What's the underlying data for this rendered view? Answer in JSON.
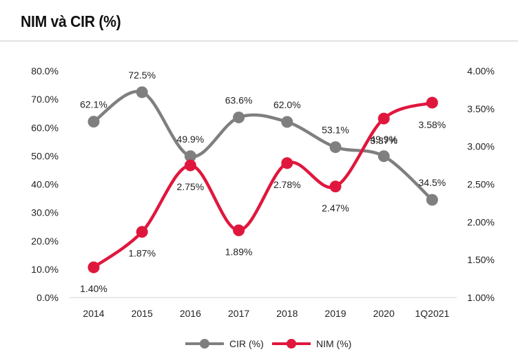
{
  "page": {
    "title": "NIM và CIR (%)"
  },
  "chart_data": {
    "type": "line",
    "title": "NIM và CIR (%)",
    "categories": [
      "2014",
      "2015",
      "2016",
      "2017",
      "2018",
      "2019",
      "2020",
      "1Q2021"
    ],
    "y_left": {
      "ylim": [
        0,
        80
      ],
      "ticks": [
        "0.0%",
        "10.0%",
        "20.0%",
        "30.0%",
        "40.0%",
        "50.0%",
        "60.0%",
        "70.0%",
        "80.0%"
      ]
    },
    "y_right": {
      "ylim": [
        1.0,
        4.0
      ],
      "ticks": [
        "1.00%",
        "1.50%",
        "2.00%",
        "2.50%",
        "3.00%",
        "3.50%",
        "4.00%"
      ]
    },
    "grid": false,
    "legend": "bottom-center",
    "series": [
      {
        "name": "CIR (%)",
        "axis": "left",
        "color": "#7f7f7f",
        "values": [
          62.1,
          72.5,
          49.9,
          63.6,
          62.0,
          53.1,
          49.9,
          34.5
        ],
        "labels": [
          "62.1%",
          "72.5%",
          "49.9%",
          "63.6%",
          "62.0%",
          "53.1%",
          "49.9%",
          "34.5%"
        ]
      },
      {
        "name": "NIM (%)",
        "axis": "right",
        "color": "#e0173d",
        "values": [
          1.4,
          1.87,
          2.75,
          1.89,
          2.78,
          2.47,
          3.37,
          3.58
        ],
        "labels": [
          "1.40%",
          "1.87%",
          "2.75%",
          "1.89%",
          "2.78%",
          "2.47%",
          "3.37%",
          "3.58%"
        ]
      }
    ]
  }
}
